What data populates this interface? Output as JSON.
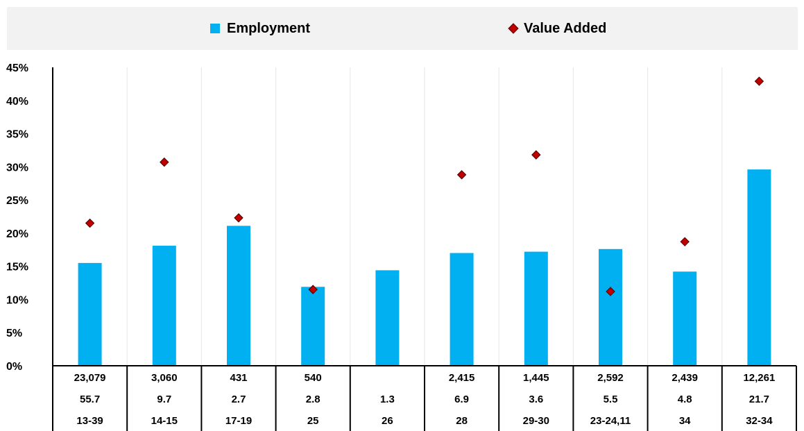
{
  "chart_data": {
    "type": "bar",
    "categories": [
      "13-39",
      "14-15",
      "17-19",
      "25",
      "26",
      "28",
      "29-30",
      "23-24,11",
      "34",
      "32-34"
    ],
    "series": [
      {
        "name": "Employment",
        "kind": "bar",
        "color": "#00B0F0",
        "values": [
          15.5,
          18.1,
          21.1,
          11.9,
          14.4,
          17.0,
          17.2,
          17.6,
          14.2,
          29.6
        ]
      },
      {
        "name": "Value Added",
        "kind": "marker-diamond",
        "color": "#C00000",
        "values": [
          21.5,
          30.7,
          22.3,
          11.5,
          null,
          28.8,
          31.8,
          11.2,
          18.7,
          42.9
        ]
      }
    ],
    "ylim": [
      0,
      45
    ],
    "yticks": [
      "0%",
      "5%",
      "10%",
      "15%",
      "20%",
      "25%",
      "30%",
      "35%",
      "40%",
      "45%"
    ],
    "ytick_values": [
      0,
      5,
      10,
      15,
      20,
      25,
      30,
      35,
      40,
      45
    ],
    "grid": "vertical",
    "legend_position": "top",
    "table_rows": [
      [
        "23,079",
        "3,060",
        "431",
        "540",
        "",
        "2,415",
        "1,445",
        "2,592",
        "2,439",
        "12,261"
      ],
      [
        "55.7",
        "9.7",
        "2.7",
        "2.8",
        "1.3",
        "6.9",
        "3.6",
        "5.5",
        "4.8",
        "21.7"
      ],
      [
        "13-39",
        "14-15",
        "17-19",
        "25",
        "26",
        "28",
        "29-30",
        "23-24,11",
        "34",
        "32-34"
      ]
    ]
  }
}
